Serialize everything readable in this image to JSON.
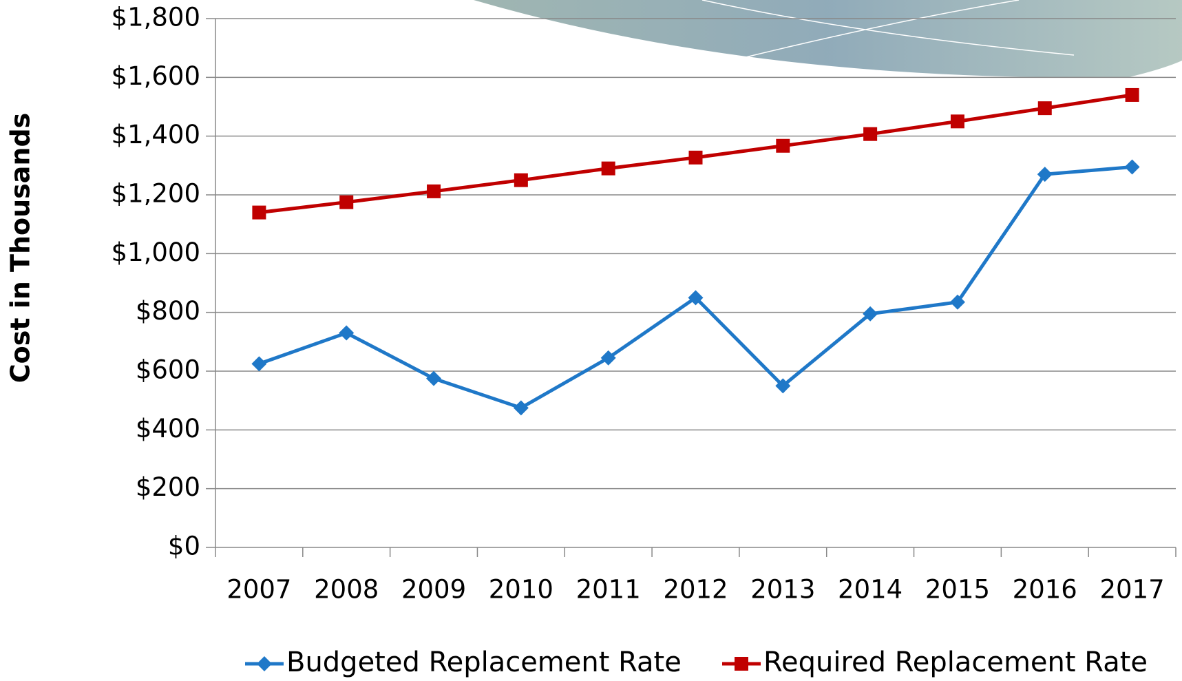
{
  "chart_data": {
    "type": "line",
    "y_label": "Cost in Thousands",
    "categories": [
      "2007",
      "2008",
      "2009",
      "2010",
      "2011",
      "2012",
      "2013",
      "2014",
      "2015",
      "2016",
      "2017"
    ],
    "series": [
      {
        "name": "Budgeted Replacement Rate",
        "color": "#1f78c8",
        "marker": "diamond",
        "values": [
          625,
          730,
          575,
          475,
          645,
          850,
          550,
          795,
          835,
          1270,
          1295
        ]
      },
      {
        "name": "Required Replacement Rate",
        "color": "#c00000",
        "marker": "square",
        "values": [
          1140,
          1175,
          1212,
          1250,
          1290,
          1327,
          1367,
          1407,
          1450,
          1495,
          1540
        ]
      }
    ],
    "ylim": [
      0,
      1800
    ],
    "yticks": [
      {
        "value": 0,
        "label": "$0"
      },
      {
        "value": 200,
        "label": "$200"
      },
      {
        "value": 400,
        "label": "$400"
      },
      {
        "value": 600,
        "label": "$600"
      },
      {
        "value": 800,
        "label": "$800"
      },
      {
        "value": 1000,
        "label": "$1,000"
      },
      {
        "value": 1200,
        "label": "$1,200"
      },
      {
        "value": 1400,
        "label": "$1,400"
      },
      {
        "value": 1600,
        "label": "$1,600"
      },
      {
        "value": 1800,
        "label": "$1,800"
      }
    ],
    "grid": true,
    "legend": "bottom"
  }
}
